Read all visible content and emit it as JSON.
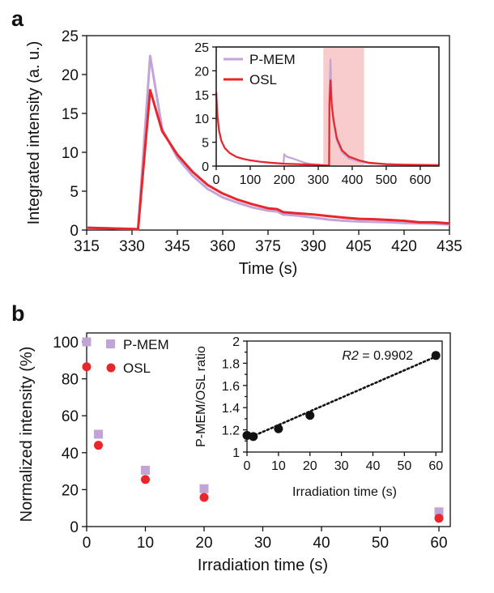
{
  "panels": {
    "a": {
      "letter": "a"
    },
    "b": {
      "letter": "b"
    }
  },
  "chart_data": [
    {
      "id": "a-main",
      "type": "line",
      "title": "",
      "xlabel": "Time (s)",
      "ylabel": "Integrated intensity (a. u.)",
      "xlim": [
        315,
        435
      ],
      "ylim": [
        0,
        25
      ],
      "xticks": [
        315,
        330,
        345,
        360,
        375,
        390,
        405,
        420,
        435
      ],
      "yticks": [
        0,
        5,
        10,
        15,
        20,
        25
      ],
      "grid": false,
      "series": [
        {
          "name": "P-MEM",
          "color": "#c3a4d6",
          "x": [
            315,
            320,
            325,
            330,
            332,
            336,
            340,
            345,
            350,
            355,
            360,
            365,
            370,
            375,
            378,
            380,
            385,
            390,
            395,
            400,
            405,
            410,
            415,
            420,
            425,
            430,
            435
          ],
          "y": [
            0.3,
            0.25,
            0.2,
            0.15,
            0.1,
            22.4,
            13.0,
            9.3,
            7.0,
            5.3,
            4.2,
            3.5,
            2.9,
            2.5,
            2.4,
            2.0,
            1.85,
            1.6,
            1.35,
            1.2,
            1.1,
            1.05,
            1.0,
            0.9,
            0.85,
            0.8,
            0.7
          ]
        },
        {
          "name": "OSL",
          "color": "#e8262c",
          "x": [
            315,
            320,
            325,
            330,
            332,
            336,
            340,
            345,
            350,
            355,
            360,
            365,
            370,
            375,
            378,
            380,
            385,
            390,
            395,
            400,
            405,
            410,
            415,
            420,
            425,
            430,
            435
          ],
          "y": [
            0.3,
            0.25,
            0.2,
            0.15,
            0.1,
            18.0,
            12.7,
            9.7,
            7.5,
            5.8,
            4.7,
            3.9,
            3.3,
            2.8,
            2.7,
            2.3,
            2.15,
            2.0,
            1.8,
            1.6,
            1.45,
            1.4,
            1.3,
            1.2,
            1.0,
            1.0,
            0.85
          ]
        }
      ]
    },
    {
      "id": "a-inset",
      "type": "line",
      "title": "",
      "xlabel": "",
      "ylabel": "",
      "xlim": [
        0,
        655
      ],
      "ylim": [
        0,
        25
      ],
      "xticks": [
        0,
        100,
        200,
        300,
        400,
        500,
        600
      ],
      "yticks": [
        0,
        5,
        10,
        15,
        20,
        25
      ],
      "grid": false,
      "highlight": {
        "from": 315,
        "to": 435,
        "color": "#f7c2c4"
      },
      "legend": {
        "placement": "top-left",
        "entries": [
          "P-MEM",
          "OSL"
        ]
      },
      "series": [
        {
          "name": "P-MEM",
          "color": "#c3a4d6",
          "x": [
            0,
            3,
            8,
            15,
            25,
            40,
            60,
            80,
            100,
            130,
            160,
            198,
            200,
            203,
            210,
            225,
            240,
            260,
            280,
            300,
            332,
            333,
            336,
            340,
            345,
            355,
            370,
            390,
            420,
            450,
            500,
            550,
            600,
            655
          ],
          "y": [
            15.5,
            11,
            7.5,
            5.3,
            3.8,
            2.7,
            1.9,
            1.5,
            1.2,
            0.9,
            0.7,
            0.5,
            2.5,
            2.2,
            1.9,
            1.6,
            1.2,
            0.7,
            0.4,
            0.3,
            0.1,
            15,
            22.4,
            13,
            9.3,
            5.3,
            2.9,
            1.6,
            0.95,
            0.6,
            0.35,
            0.25,
            0.2,
            0.15
          ]
        },
        {
          "name": "OSL",
          "color": "#e8262c",
          "x": [
            0,
            3,
            8,
            15,
            25,
            40,
            60,
            80,
            100,
            130,
            160,
            200,
            240,
            280,
            332,
            333,
            336,
            340,
            345,
            355,
            370,
            390,
            420,
            450,
            500,
            550,
            600,
            655
          ],
          "y": [
            15.5,
            11,
            7.5,
            5.3,
            3.8,
            2.7,
            1.9,
            1.5,
            1.2,
            0.9,
            0.7,
            0.5,
            0.4,
            0.3,
            0.1,
            13,
            18.0,
            12.7,
            9.7,
            5.8,
            3.3,
            2.0,
            1.2,
            0.7,
            0.4,
            0.3,
            0.25,
            0.2
          ]
        }
      ]
    },
    {
      "id": "b-main",
      "type": "scatter",
      "title": "",
      "xlabel": "Irradiation time (s)",
      "ylabel": "Normalized intensity (%)",
      "xlim": [
        0,
        60
      ],
      "ylim": [
        0,
        100
      ],
      "xticks": [
        0,
        10,
        20,
        30,
        40,
        50,
        60
      ],
      "yticks": [
        0,
        20,
        40,
        60,
        80,
        100
      ],
      "grid": false,
      "legend": {
        "placement": "top-left",
        "entries": [
          "P-MEM",
          "OSL"
        ]
      },
      "series": [
        {
          "name": "P-MEM",
          "marker": "square",
          "color": "#c3a4d6",
          "x": [
            0,
            2,
            10,
            20,
            60
          ],
          "y": [
            100,
            50,
            30.5,
            20.5,
            8
          ]
        },
        {
          "name": "OSL",
          "marker": "circle",
          "color": "#e8262c",
          "x": [
            0,
            2,
            10,
            20,
            60
          ],
          "y": [
            86.5,
            44,
            25.5,
            15.8,
            4.5
          ]
        }
      ]
    },
    {
      "id": "b-inset",
      "type": "scatter",
      "title": "",
      "xlabel": "Irradiation time (s)",
      "ylabel": "P-MEM/OSL ratio",
      "xlim": [
        0,
        62
      ],
      "ylim": [
        1,
        2
      ],
      "xticks": [
        0,
        10,
        20,
        30,
        40,
        50,
        60
      ],
      "yticks": [
        1,
        1.2,
        1.4,
        1.6,
        1.8,
        2
      ],
      "yticks_labels": [
        "1",
        "1.2",
        "1.4",
        "1.6",
        "1.8",
        "2"
      ],
      "grid": false,
      "annotation": {
        "prefix": "R2",
        "text": " = 0.9902"
      },
      "series": [
        {
          "name": "ratio",
          "marker": "circle",
          "color": "#111111",
          "x": [
            0,
            2,
            10,
            20,
            60
          ],
          "y": [
            1.15,
            1.14,
            1.21,
            1.33,
            1.87
          ]
        }
      ],
      "fit": {
        "type": "linear",
        "style": "dotted",
        "color": "#111111",
        "x": [
          0,
          60
        ],
        "y": [
          1.12,
          1.86
        ]
      }
    }
  ]
}
